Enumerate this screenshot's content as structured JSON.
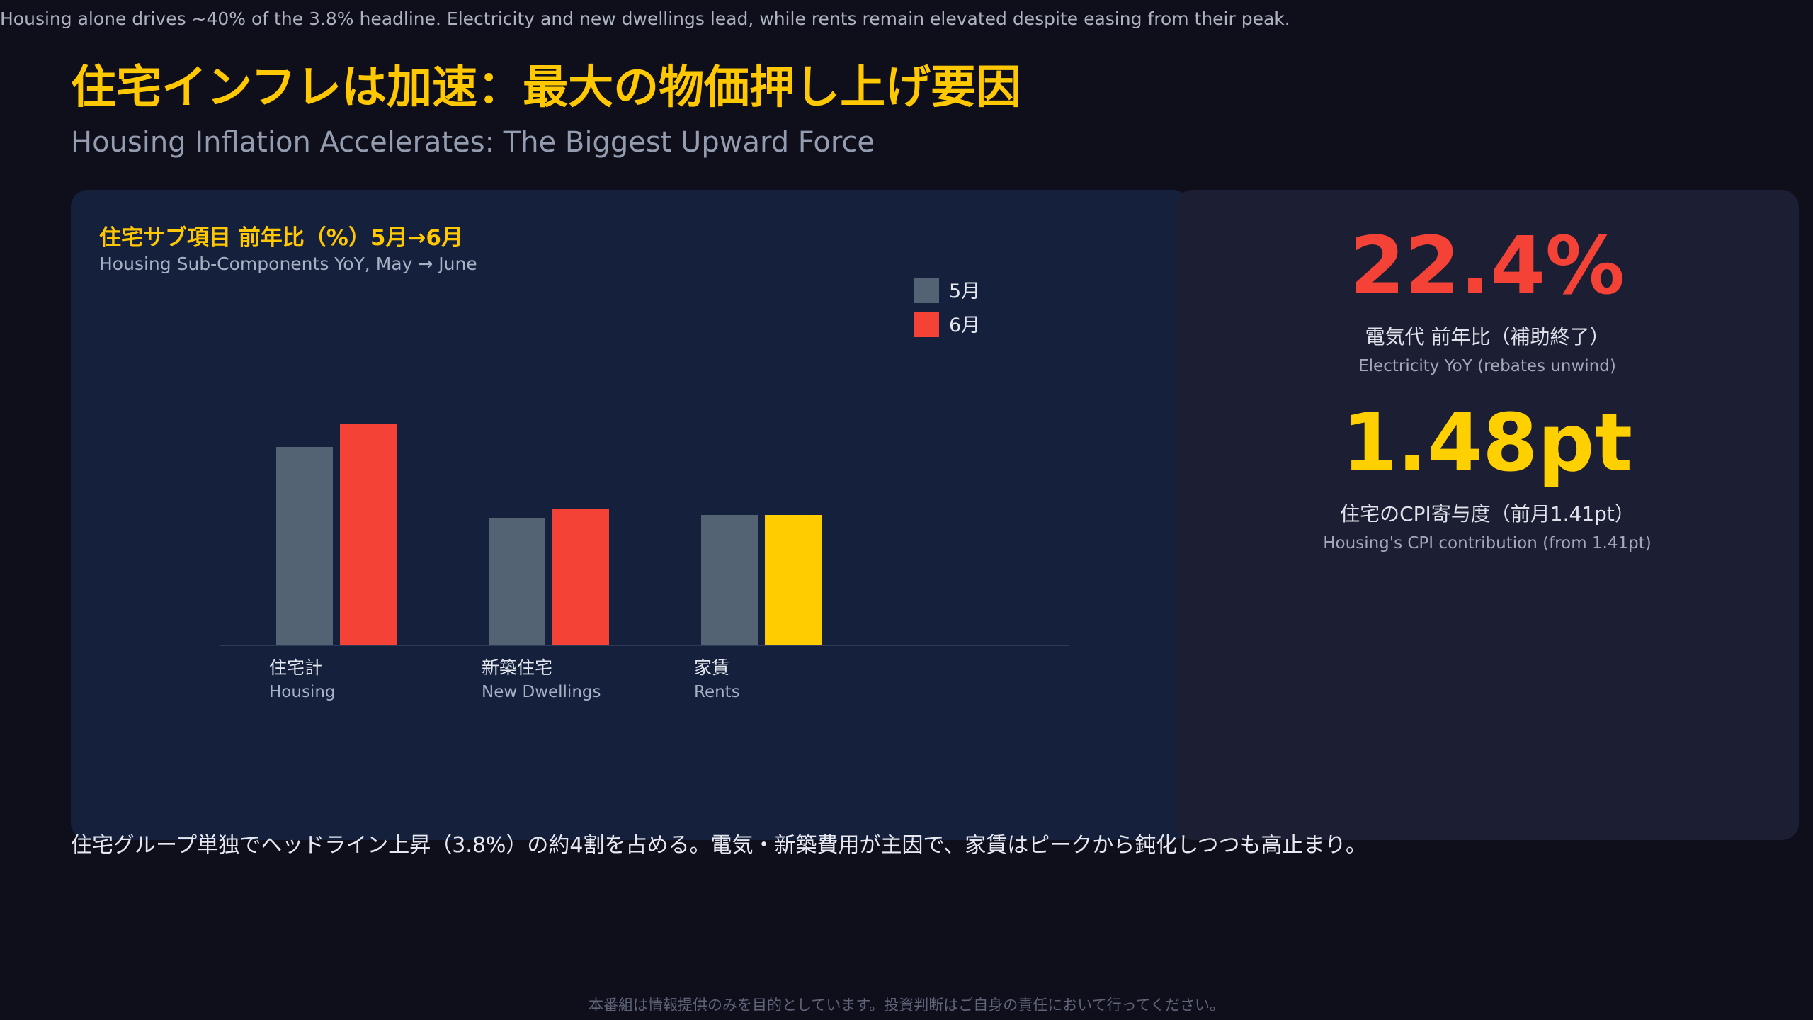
{
  "top_caption": "Housing alone drives ~40% of the 3.8% headline. Electricity and new dwellings lead, while rents remain elevated despite easing from their peak.",
  "title_jp": "住宅インフレは加速：最大の物価押し上げ要因",
  "title_en": "Housing Inflation Accelerates: The Biggest Upward Force",
  "chart_data": {
    "type": "bar",
    "title": "住宅サブ項目 前年比（%）5月→6月",
    "subtitle": "Housing Sub-Components YoY, May → June",
    "categories": [
      "住宅計",
      "新築住宅",
      "家賃"
    ],
    "categories_en": [
      "Housing",
      "New Dwellings",
      "Rents"
    ],
    "series": [
      {
        "name": "5月",
        "values": [
          7.0,
          4.5,
          4.6
        ],
        "color": "#536373"
      },
      {
        "name": "6月",
        "values": [
          7.8,
          4.8,
          4.6
        ],
        "colors": [
          "#f44336",
          "#f44336",
          "#ffcc00"
        ]
      }
    ],
    "ylim": [
      0,
      8.5
    ],
    "grid": false,
    "legend_position": "top-right"
  },
  "stats": [
    {
      "value": "22.4%",
      "label_jp": "電気代 前年比（補助終了）",
      "label_en": "Electricity YoY (rebates unwind)",
      "color": "#f44336"
    },
    {
      "value": "1.48pt",
      "label_jp": "住宅のCPI寄与度（前月1.41pt）",
      "label_en": "Housing's CPI contribution (from 1.41pt)",
      "color": "#ffd000"
    }
  ],
  "summary": "住宅グループ単独でヘッドライン上昇（3.8%）の約4割を占める。電気・新築費用が主因で、家賃はピークから鈍化しつつも高止まり。",
  "footer": "本番組は情報提供のみを目的としています。投資判断はご自身の責任において行ってください。"
}
